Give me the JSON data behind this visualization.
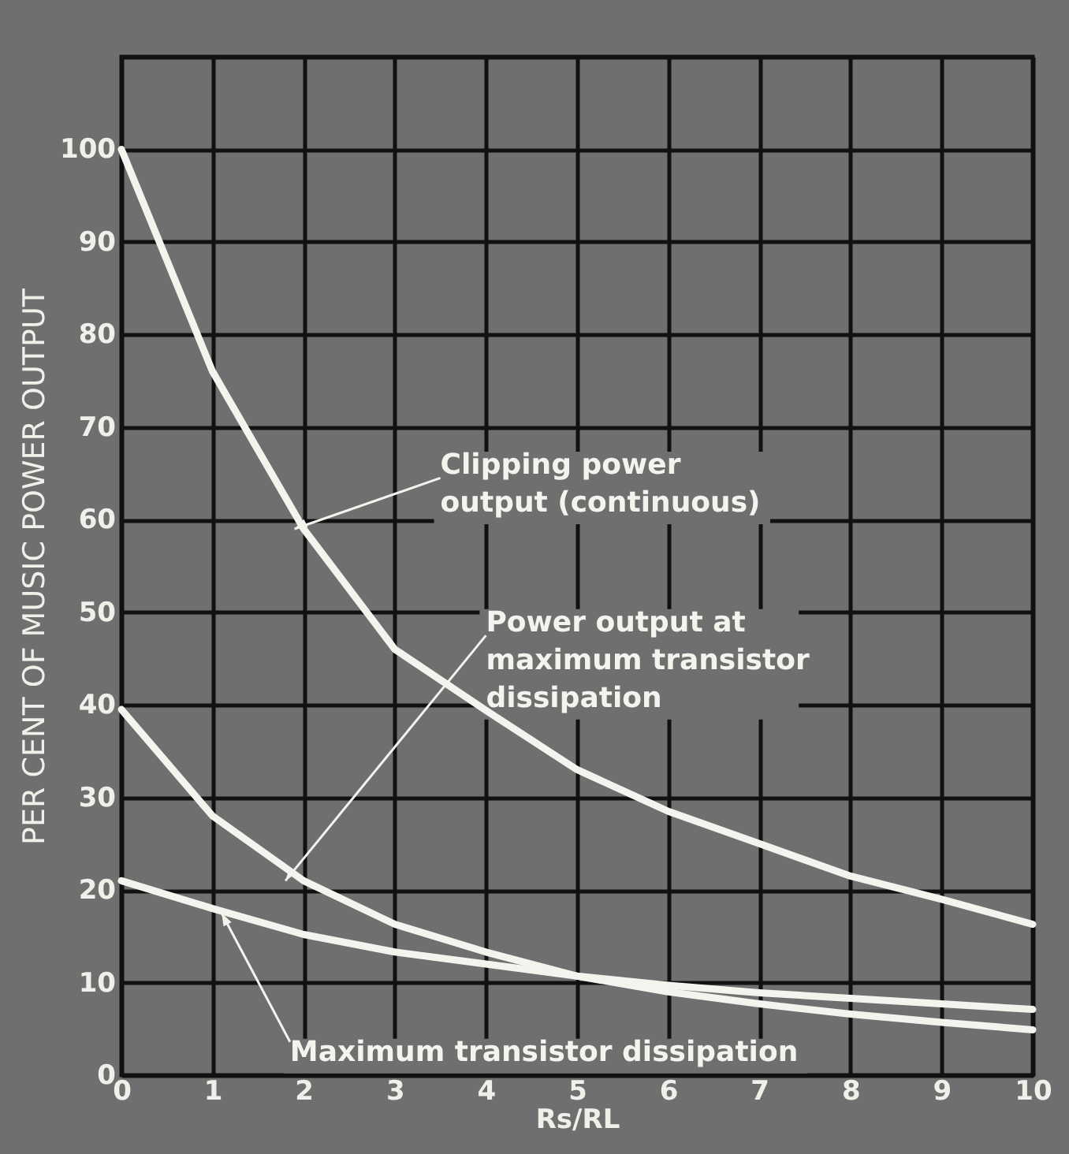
{
  "chart_data": {
    "type": "line",
    "xlabel": "Rs/RL",
    "ylabel": "PER CENT OF MUSIC POWER OUTPUT",
    "x": [
      0,
      1,
      2,
      3,
      4,
      5,
      6,
      7,
      8,
      9,
      10
    ],
    "series": [
      {
        "color": "#f4f4ef",
        "values": [
          100,
          76,
          59,
          46,
          39.4,
          33,
          28.5,
          25,
          21.5,
          19,
          16.3
        ]
      },
      {
        "color": "#f4f4ef",
        "values": [
          39.5,
          28,
          21,
          16.3,
          13.3,
          10.7,
          9,
          7.7,
          6.6,
          5.7,
          4.9
        ]
      },
      {
        "color": "#f4f4ef",
        "values": [
          21,
          18,
          15.2,
          13.3,
          12,
          10.7,
          9.7,
          8.9,
          8.3,
          7.7,
          7.1
        ]
      }
    ],
    "xlim": [
      0,
      10
    ],
    "xticks": [
      0,
      1,
      2,
      3,
      4,
      5,
      6,
      7,
      8,
      9,
      10
    ],
    "ylim": [
      0,
      110
    ],
    "yticks": [
      0,
      10,
      20,
      30,
      40,
      50,
      60,
      70,
      80,
      90,
      100,
      {
        "value": 110,
        "label": null
      }
    ],
    "grid": true,
    "marker": "none",
    "line_style": "solid",
    "annotations": [
      {
        "text": "Clipping power output (continuous)",
        "x": 1.9,
        "y": 59
      },
      {
        "text": "Power output at maximum transistor dissipation",
        "x": 1.8,
        "y": 21
      },
      {
        "text": "Maximum transistor dissipation",
        "x": 1.1,
        "y": 17.5
      }
    ]
  }
}
